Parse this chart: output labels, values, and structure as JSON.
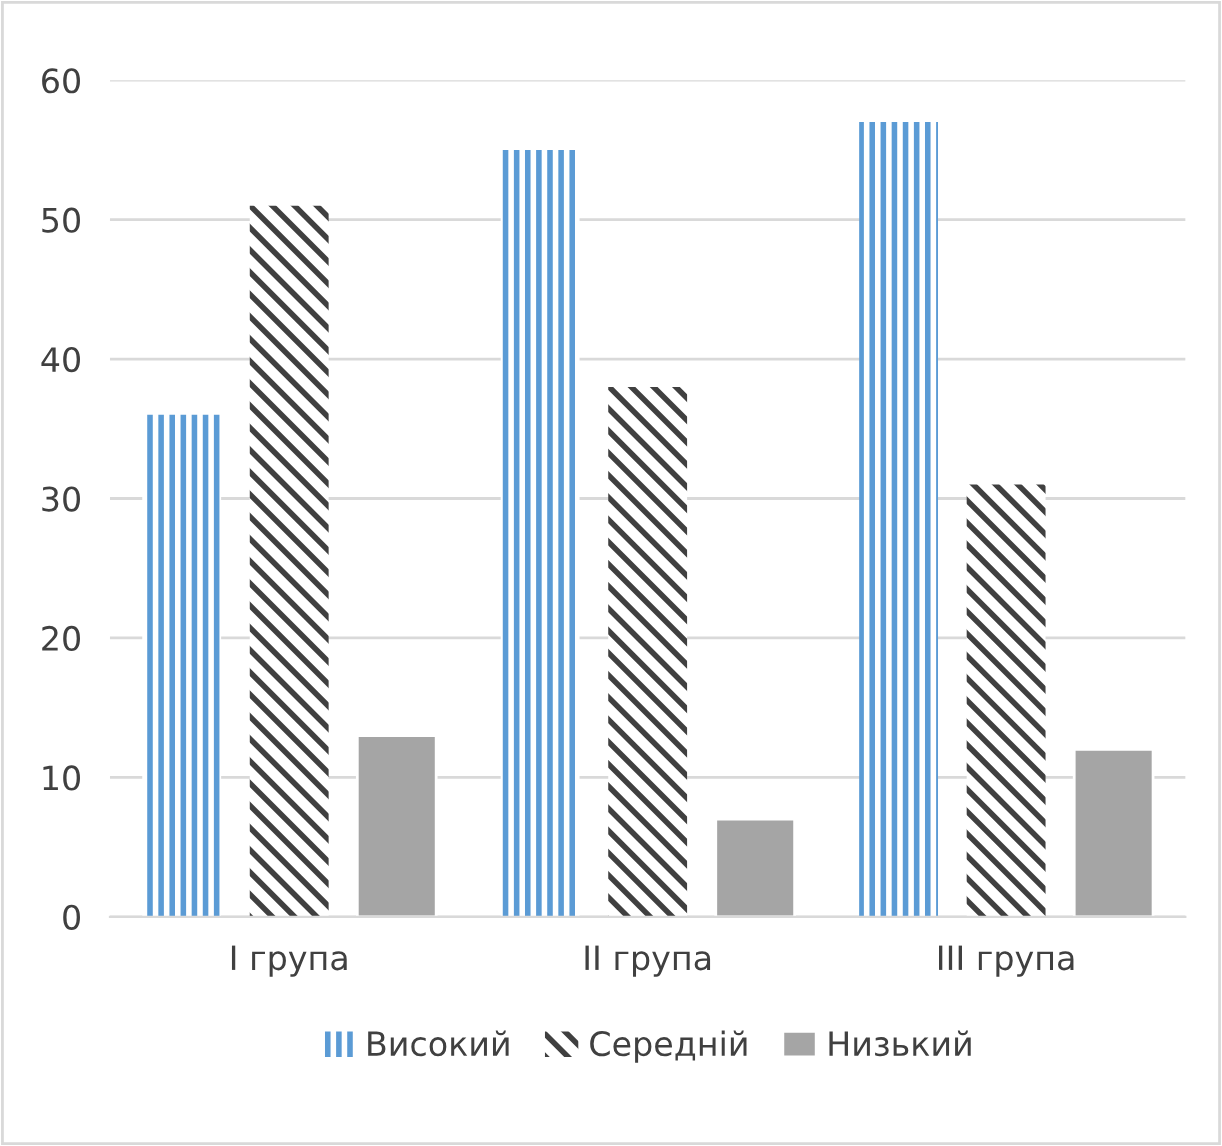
{
  "chart_data": {
    "type": "bar",
    "categories": [
      "I група",
      "II група",
      "III група"
    ],
    "series": [
      {
        "name": "Високий",
        "color": "#5b9bd5",
        "values": [
          36,
          55,
          57
        ]
      },
      {
        "name": "Середній",
        "color": "#404040",
        "values": [
          51,
          38,
          31
        ]
      },
      {
        "name": "Низький",
        "color": "#a5a5a5",
        "values": [
          13,
          7,
          12
        ]
      }
    ],
    "ylim": [
      0,
      60
    ],
    "yticks": [
      0,
      10,
      20,
      30,
      40,
      50,
      60
    ],
    "grid": "y",
    "legend": "bottom"
  }
}
